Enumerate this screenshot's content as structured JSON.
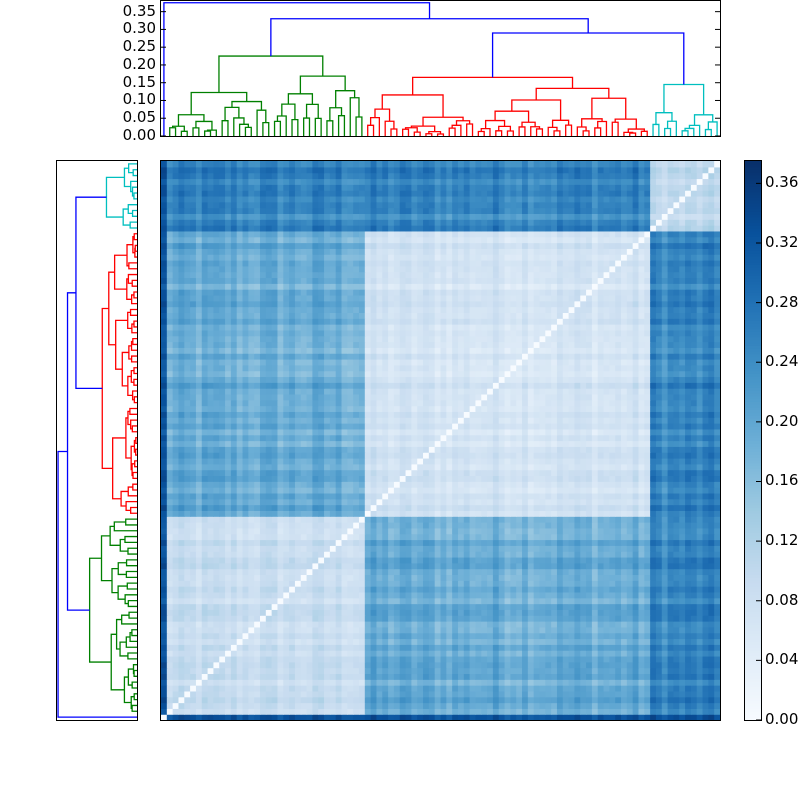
{
  "chart_data": {
    "type": "heatmap",
    "title": "",
    "description": "Clustered distance matrix (heatmap) with hierarchical-clustering dendrograms on top and left, and a colorbar on the right",
    "colormap": "Blues",
    "colorbar": {
      "min": 0.0,
      "max": 0.375,
      "ticks": [
        "0.00",
        "0.04",
        "0.08",
        "0.12",
        "0.16",
        "0.20",
        "0.24",
        "0.28",
        "0.32",
        "0.36"
      ]
    },
    "top_dendrogram": {
      "ylabel": "",
      "ylim": [
        0.0,
        0.38
      ],
      "yticks": [
        "0.00",
        "0.05",
        "0.10",
        "0.15",
        "0.20",
        "0.25",
        "0.30",
        "0.35"
      ],
      "clusters": [
        {
          "name": "outlier",
          "color": "#0000ff",
          "leaves": 1
        },
        {
          "name": "green",
          "color": "#008000",
          "leaves": 34,
          "merge_height": 0.225
        },
        {
          "name": "red",
          "color": "#ff0000",
          "leaves": 49,
          "merge_height": 0.165
        },
        {
          "name": "cyan",
          "color": "#00bfbf",
          "leaves": 12,
          "merge_height": 0.145
        }
      ],
      "links": [
        {
          "between": [
            "red",
            "cyan"
          ],
          "height": 0.29,
          "color": "#0000ff"
        },
        {
          "between": [
            "green",
            "red+cyan"
          ],
          "height": 0.33,
          "color": "#0000ff"
        },
        {
          "between": [
            "outlier",
            "rest"
          ],
          "height": 0.375,
          "color": "#0000ff"
        }
      ]
    },
    "left_dendrogram": {
      "orientation": "left",
      "order_top_to_bottom": [
        "cyan",
        "red",
        "green",
        "outlier"
      ]
    },
    "matrix": {
      "n": 96,
      "within_cluster_range": [
        0.03,
        0.12
      ],
      "between_green_red": [
        0.14,
        0.24
      ],
      "between_main_cyan": [
        0.22,
        0.3
      ],
      "outlier_distance": [
        0.3,
        0.37
      ],
      "diagonal": 0.0
    }
  },
  "colors": {
    "blue_link": "#0000ff",
    "green": "#008000",
    "red": "#ff0000",
    "cyan": "#00bfbf"
  }
}
